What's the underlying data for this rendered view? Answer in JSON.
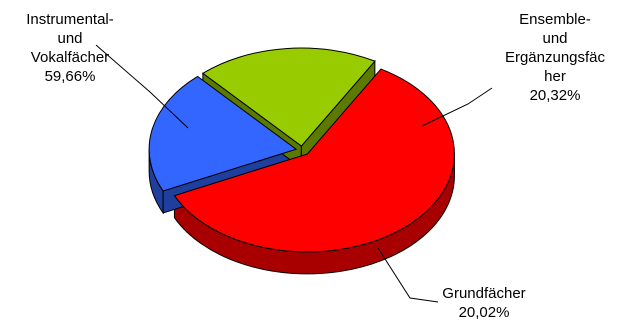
{
  "chart_data": {
    "type": "pie",
    "style": "3d-exploded",
    "categories": [
      "Instrumental- und Vokalfächer",
      "Ensemble- und Ergänzungsfächer",
      "Grundfächer"
    ],
    "values": [
      59.66,
      20.32,
      20.02
    ],
    "value_labels": [
      "59,66%",
      "20,32%",
      "20,02%"
    ],
    "colors": [
      "#ff0000",
      "#3366ff",
      "#99cc00"
    ],
    "side_colors": [
      "#a80000",
      "#1f3f9e",
      "#5c7a00"
    ],
    "legend": "none",
    "labels": [
      {
        "lines": [
          "Instrumental-",
          "und",
          "Vokalfächer",
          "59,66%"
        ]
      },
      {
        "lines": [
          "Ensemble-",
          "und",
          "Ergänzungsfäc",
          "her",
          "20,32%"
        ]
      },
      {
        "lines": [
          "Grundfächer",
          "20,02%"
        ]
      }
    ]
  }
}
